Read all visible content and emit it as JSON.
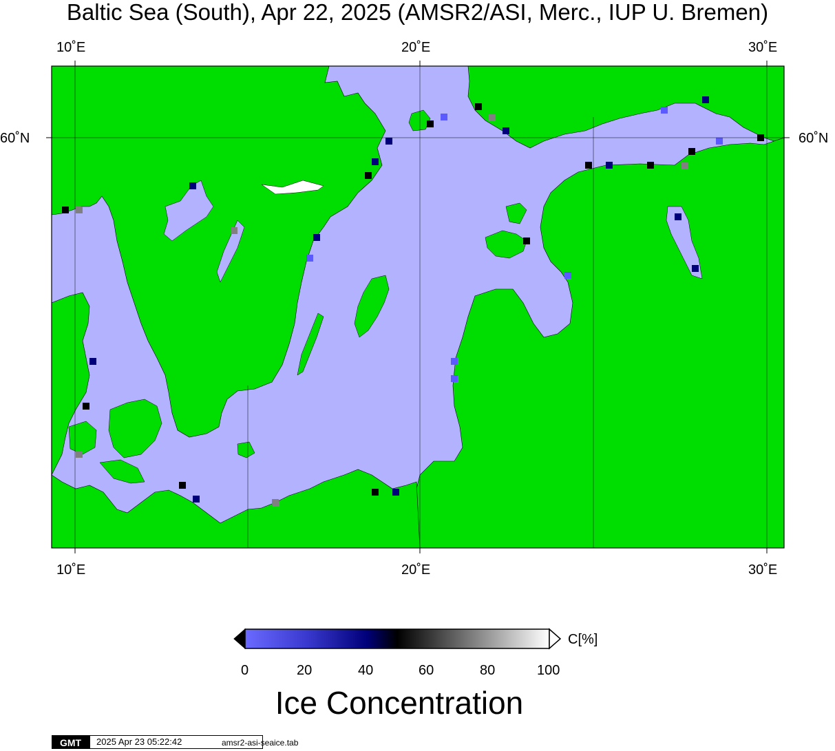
{
  "title": "Baltic Sea (South), Apr 22, 2025 (AMSR2/ASI, Merc., IUP U. Bremen)",
  "axes": {
    "x_ticks_top": [
      "10˚E",
      "20˚E",
      "30˚E"
    ],
    "x_ticks_bottom": [
      "10˚E",
      "20˚E",
      "30˚E"
    ],
    "y_ticks_left": [
      "60˚N"
    ],
    "y_ticks_right": [
      "60˚N"
    ]
  },
  "colorbar": {
    "unit": "C[%]",
    "ticks": [
      "0",
      "20",
      "40",
      "60",
      "80",
      "100"
    ],
    "title": "Ice Concentration",
    "stops": [
      "#6a6aff",
      "#00007a",
      "#000000",
      "#ffffff"
    ]
  },
  "colors": {
    "land": "#00dd00",
    "open_water": "#b2b2ff",
    "no_data": "#808080",
    "frame": "#000000"
  },
  "footer": {
    "logo": "GMT",
    "timestamp": "2025 Apr 23 05:22:42",
    "filename": "amsr2-asi-seaice.tab"
  }
}
